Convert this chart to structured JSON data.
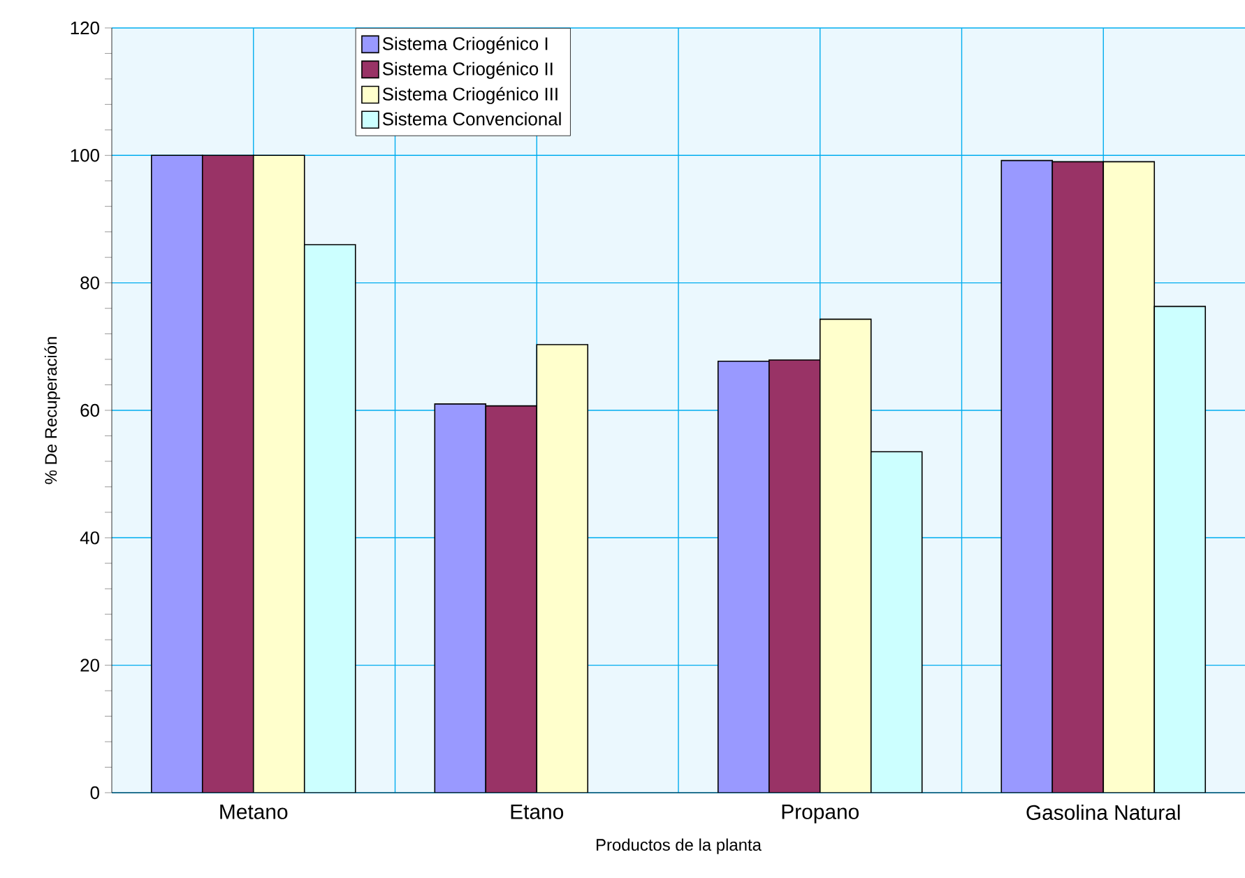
{
  "chart_data": {
    "type": "bar",
    "xlabel": "Productos de la planta",
    "ylabel": "% De Recuperación",
    "categories": [
      "Metano",
      "Etano",
      "Propano",
      "Gasolina Natural"
    ],
    "series": [
      {
        "name": "Sistema Criogénico I",
        "color": "#9999ff",
        "values": [
          100,
          61.0,
          67.7,
          99.2
        ]
      },
      {
        "name": "Sistema Criogénico II",
        "color": "#993366",
        "values": [
          100,
          60.7,
          67.9,
          99.0
        ]
      },
      {
        "name": "Sistema Criogénico III",
        "color": "#ffffcc",
        "values": [
          100,
          70.3,
          74.3,
          99.0
        ]
      },
      {
        "name": "Sistema Convencional",
        "color": "#ccffff",
        "values": [
          86.0,
          null,
          53.5,
          76.3
        ]
      }
    ],
    "ylim": [
      0,
      120
    ],
    "yticks": [
      0,
      20,
      40,
      60,
      80,
      100,
      120
    ],
    "grid": true,
    "legend": "top"
  }
}
